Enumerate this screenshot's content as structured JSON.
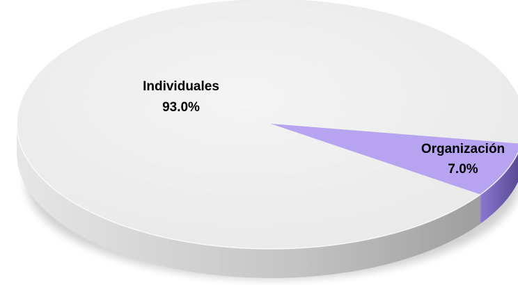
{
  "chart_data": {
    "type": "pie",
    "title": "",
    "labels": [
      "Individuales",
      "Organización"
    ],
    "values": [
      93.0,
      7.0
    ],
    "value_labels": [
      "93.0%",
      "7.0%"
    ],
    "colors": [
      "#eeeeee",
      "#b7a4f0"
    ],
    "side_colors": [
      "#c9c9c9",
      "#6f5fb0"
    ],
    "style": "3d-tilted",
    "legend": "none",
    "data_labels": "category and percent"
  }
}
